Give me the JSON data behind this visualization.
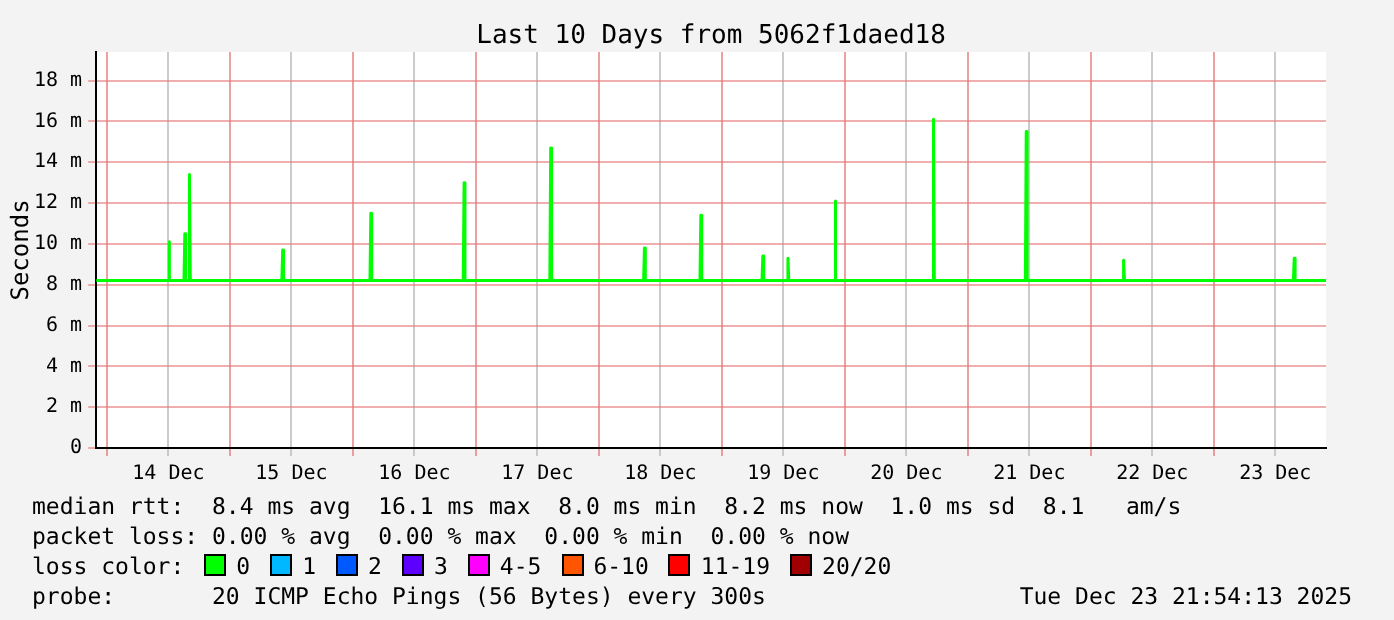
{
  "chart_data": {
    "type": "line",
    "title": "Last 10 Days from 5062f1daed18",
    "ylabel": "Seconds",
    "x": [
      "2025-12-13T21:54",
      "2025-12-14T11:56",
      "2025-12-14T12:06",
      "2025-12-14T12:16",
      "2025-12-14T15:02",
      "2025-12-14T15:12",
      "2025-12-14T15:22",
      "2025-12-14T15:56",
      "2025-12-14T16:06",
      "2025-12-14T16:16",
      "2025-12-15T10:08",
      "2025-12-15T10:18",
      "2025-12-15T10:28",
      "2025-12-16T03:20",
      "2025-12-16T03:30",
      "2025-12-16T03:40",
      "2025-12-16T21:32",
      "2025-12-16T21:42",
      "2025-12-16T21:52",
      "2025-12-17T14:26",
      "2025-12-17T14:36",
      "2025-12-17T14:46",
      "2025-12-18T08:44",
      "2025-12-18T08:54",
      "2025-12-18T09:04",
      "2025-12-18T19:44",
      "2025-12-18T19:54",
      "2025-12-18T20:04",
      "2025-12-19T07:50",
      "2025-12-19T08:00",
      "2025-12-19T08:10",
      "2025-12-19T12:44",
      "2025-12-19T12:54",
      "2025-12-19T13:04",
      "2025-12-19T21:56",
      "2025-12-19T22:06",
      "2025-12-19T22:16",
      "2025-12-20T17:08",
      "2025-12-20T17:18",
      "2025-12-20T17:28",
      "2025-12-21T11:14",
      "2025-12-21T11:24",
      "2025-12-21T11:34",
      "2025-12-22T06:14",
      "2025-12-22T06:24",
      "2025-12-22T06:34",
      "2025-12-23T15:32",
      "2025-12-23T15:42",
      "2025-12-23T15:52",
      "2025-12-23T21:54"
    ],
    "series": [
      {
        "color": "#00ff00",
        "values": [
          8.2,
          8.2,
          10.1,
          8.2,
          8.2,
          10.5,
          8.2,
          8.2,
          13.4,
          8.2,
          8.2,
          9.7,
          8.2,
          8.2,
          11.5,
          8.2,
          8.2,
          13,
          8.2,
          8.2,
          14.7,
          8.2,
          8.2,
          9.8,
          8.2,
          8.2,
          11.4,
          8.2,
          8.2,
          9.4,
          8.2,
          8.2,
          9.3,
          8.2,
          8.2,
          12.1,
          8.2,
          8.2,
          16.1,
          8.2,
          8.2,
          15.5,
          8.2,
          8.2,
          9.2,
          8.2,
          8.2,
          9.3,
          8.2,
          8.2
        ]
      }
    ],
    "xlim": [
      "2025-12-13T21:54",
      "2025-12-23T21:54"
    ],
    "xticks": [
      {
        "value": "2025-12-14T00:00",
        "label": null
      },
      {
        "value": "2025-12-14T12:00",
        "label": "14 Dec"
      },
      {
        "value": "2025-12-15T00:00",
        "label": null
      },
      {
        "value": "2025-12-15T12:00",
        "label": "15 Dec"
      },
      {
        "value": "2025-12-16T00:00",
        "label": null
      },
      {
        "value": "2025-12-16T12:00",
        "label": "16 Dec"
      },
      {
        "value": "2025-12-17T00:00",
        "label": null
      },
      {
        "value": "2025-12-17T12:00",
        "label": "17 Dec"
      },
      {
        "value": "2025-12-18T00:00",
        "label": null
      },
      {
        "value": "2025-12-18T12:00",
        "label": "18 Dec"
      },
      {
        "value": "2025-12-19T00:00",
        "label": null
      },
      {
        "value": "2025-12-19T12:00",
        "label": "19 Dec"
      },
      {
        "value": "2025-12-20T00:00",
        "label": null
      },
      {
        "value": "2025-12-20T12:00",
        "label": "20 Dec"
      },
      {
        "value": "2025-12-21T00:00",
        "label": null
      },
      {
        "value": "2025-12-21T12:00",
        "label": "21 Dec"
      },
      {
        "value": "2025-12-22T00:00",
        "label": null
      },
      {
        "value": "2025-12-22T12:00",
        "label": "22 Dec"
      },
      {
        "value": "2025-12-23T00:00",
        "label": null
      },
      {
        "value": "2025-12-23T12:00",
        "label": "23 Dec"
      }
    ],
    "ylim": [
      0,
      19.4
    ],
    "yticks": [
      0,
      {
        "value": 2,
        "label": "2 m"
      },
      {
        "value": 4,
        "label": "4 m"
      },
      {
        "value": 6,
        "label": "6 m"
      },
      {
        "value": 8,
        "label": "8 m"
      },
      {
        "value": 10,
        "label": "10 m"
      },
      {
        "value": 12,
        "label": "12 m"
      },
      {
        "value": 14,
        "label": "14 m"
      },
      {
        "value": 16,
        "label": "16 m"
      },
      {
        "value": 18,
        "label": "18 m"
      }
    ],
    "grid": true,
    "legend": false,
    "marker": "none",
    "line_style": "solid",
    "annotations": [
      "median rtt:  8.4 ms avg  16.1 ms max  8.0 ms min  8.2 ms now  1.0 ms sd  8.1   am/s",
      "packet loss: 0.00 % avg  0.00 % max  0.00 % min  0.00 % now",
      "loss color:",
      "0",
      "1",
      "2",
      "3",
      "4-5",
      "6-10",
      "11-19",
      "20/20",
      "probe:       20 ICMP Echo Pings (56 Bytes) every 300s",
      "Tue Dec 23 21:54:13 2025"
    ]
  }
}
